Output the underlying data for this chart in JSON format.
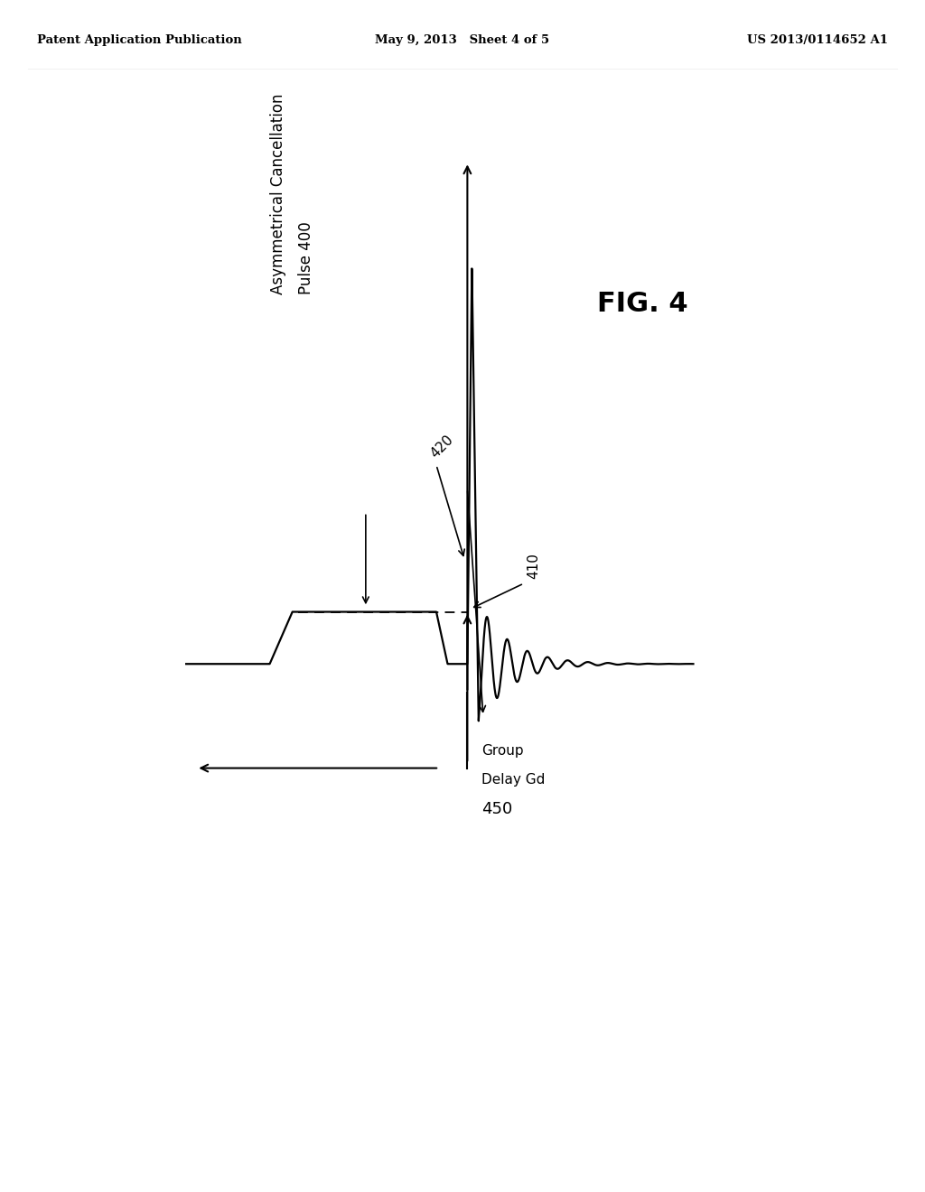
{
  "bg_color": "#ffffff",
  "header_left": "Patent Application Publication",
  "header_center": "May 9, 2013   Sheet 4 of 5",
  "header_right": "US 2013/0114652 A1",
  "fig_label": "FIG. 4",
  "label_400": "Asymmetrical Cancellation\nPulse 400",
  "label_410": "410",
  "label_420": "420",
  "label_450_line1": "Group",
  "label_450_line2": "Delay Gd",
  "label_450_line3": "450"
}
